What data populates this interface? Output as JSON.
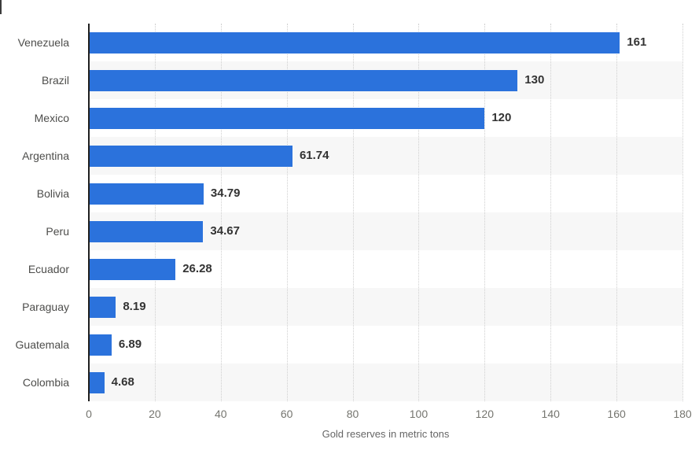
{
  "chart_data": {
    "type": "bar",
    "orientation": "horizontal",
    "title": "",
    "xlabel": "Gold reserves in metric tons",
    "ylabel": "",
    "categories": [
      "Venezuela",
      "Brazil",
      "Mexico",
      "Argentina",
      "Bolivia",
      "Peru",
      "Ecuador",
      "Paraguay",
      "Guatemala",
      "Colombia"
    ],
    "values": [
      161,
      130,
      120,
      61.74,
      34.79,
      34.67,
      26.28,
      8.19,
      6.89,
      4.68
    ],
    "value_labels": [
      "161",
      "130",
      "120",
      "61.74",
      "34.79",
      "34.67",
      "26.28",
      "8.19",
      "6.89",
      "4.68"
    ],
    "xlim": [
      0,
      180
    ],
    "x_ticks": [
      0,
      20,
      40,
      60,
      80,
      100,
      120,
      140,
      160,
      180
    ],
    "grid": "vertical-dotted",
    "row_striping": "alternate-even-rows",
    "legend": false
  },
  "colors": {
    "bar": "#2b72dc",
    "row_stripe": "#f7f7f7",
    "gridline": "#cfcfcf",
    "axis_line": "#1f1f1f",
    "category_label": "#4d4d4b",
    "value_label": "#333333",
    "tick_label": "#75756f",
    "axis_title": "#666666",
    "background": "#ffffff"
  }
}
